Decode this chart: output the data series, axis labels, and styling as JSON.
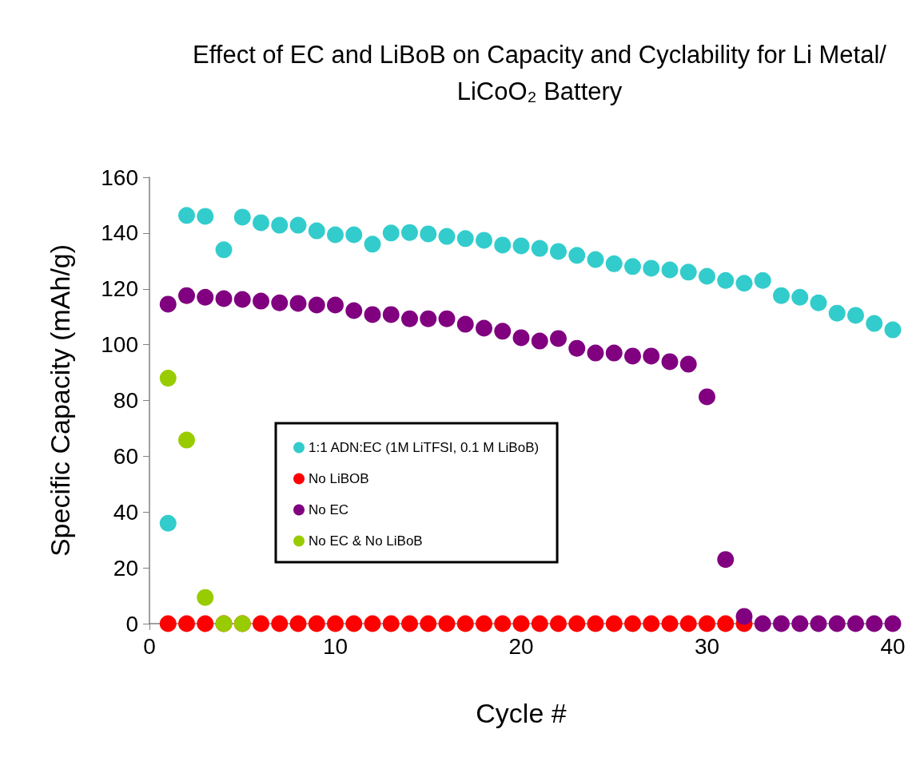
{
  "chart_data": {
    "type": "scatter",
    "title": "Effect of EC and LiBoB on Capacity and Cyclability for Li Metal/LiCoO₂ Battery",
    "xlabel": "Cycle #",
    "ylabel": "Specific Capacity (mAh/g)",
    "x": [
      1,
      2,
      3,
      4,
      5,
      6,
      7,
      8,
      9,
      10,
      11,
      12,
      13,
      14,
      15,
      16,
      17,
      18,
      19,
      20,
      21,
      22,
      23,
      24,
      25,
      26,
      27,
      28,
      29,
      30,
      31,
      32,
      33,
      34,
      35,
      36,
      37,
      38,
      39,
      40
    ],
    "series": [
      {
        "name": "1:1 ADN:EC (1M LiTFSI, 0.1 M LiBoB)",
        "color": "#33cccc",
        "values": [
          36,
          146.3,
          146,
          134,
          145.7,
          143.7,
          142.8,
          142.8,
          140.8,
          139.4,
          139.4,
          136,
          140,
          140.2,
          139.7,
          138.8,
          138,
          137.4,
          135.7,
          135.4,
          134.5,
          133.4,
          132,
          130.5,
          129,
          128,
          127.4,
          126.8,
          126,
          124.5,
          123,
          122,
          123,
          117.6,
          117,
          115,
          111.3,
          110.5,
          107.6,
          105.3
        ]
      },
      {
        "name": "No LiBOB",
        "color": "#ff0000",
        "values": [
          0,
          0,
          0,
          0,
          0,
          0,
          0,
          0,
          0,
          0,
          0,
          0,
          0,
          0,
          0,
          0,
          0,
          0,
          0,
          0,
          0,
          0,
          0,
          0,
          0,
          0,
          0,
          0,
          0,
          0,
          0,
          0,
          null,
          null,
          null,
          null,
          null,
          null,
          null,
          null
        ]
      },
      {
        "name": "No EC",
        "color": "#800080",
        "values": [
          114.5,
          117.6,
          117,
          116.5,
          116.2,
          115.6,
          115,
          114.8,
          114.2,
          114.2,
          112.2,
          110.8,
          110.8,
          109.3,
          109.3,
          109.3,
          107.3,
          105.9,
          104.8,
          102.5,
          101.3,
          102.2,
          98.7,
          97,
          97,
          95.9,
          95.9,
          93.9,
          93,
          81.3,
          23,
          2.6,
          0,
          0,
          0,
          0,
          0,
          0,
          0,
          0
        ]
      },
      {
        "name": "No EC & No LiBoB",
        "color": "#99cc00",
        "values": [
          88,
          65.8,
          9.4,
          0,
          0,
          null,
          null,
          null,
          null,
          null,
          null,
          null,
          null,
          null,
          null,
          null,
          null,
          null,
          null,
          null,
          null,
          null,
          null,
          null,
          null,
          null,
          null,
          null,
          null,
          null,
          null,
          null,
          null,
          null,
          null,
          null,
          null,
          null,
          null,
          null
        ]
      }
    ],
    "xlim": [
      0,
      40
    ],
    "xticks": [
      0,
      10,
      20,
      30,
      40
    ],
    "ylim": [
      0,
      160
    ],
    "yticks": [
      0,
      20,
      40,
      60,
      80,
      100,
      120,
      140,
      160
    ],
    "grid": false,
    "legend": "left",
    "marker": "circle"
  }
}
